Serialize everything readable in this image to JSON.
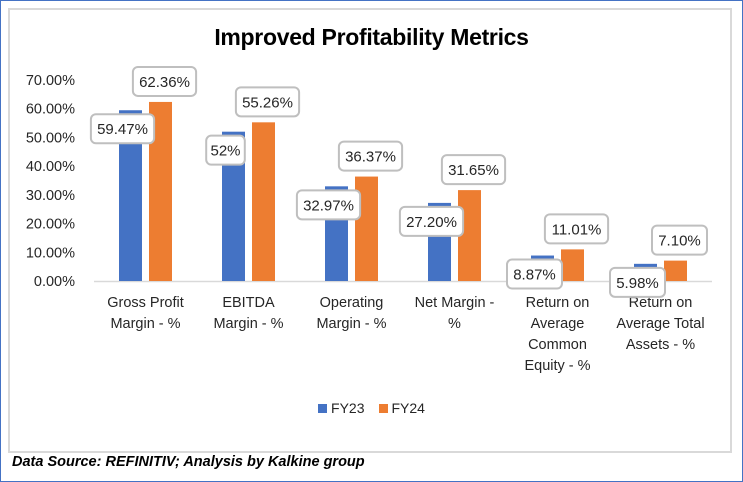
{
  "chart_data": {
    "type": "bar",
    "title": "Improved Profitability Metrics",
    "xlabel": "",
    "ylabel": "",
    "ylim": [
      0,
      70
    ],
    "yticks": [
      "0.00%",
      "10.00%",
      "20.00%",
      "30.00%",
      "40.00%",
      "50.00%",
      "60.00%",
      "70.00%"
    ],
    "ytick_values": [
      0,
      10,
      20,
      30,
      40,
      50,
      60,
      70
    ],
    "grid": false,
    "legend_position": "bottom",
    "categories": [
      [
        "Gross Profit",
        "Margin - %"
      ],
      [
        "EBITDA",
        "Margin - %"
      ],
      [
        "Operating",
        "Margin - %"
      ],
      [
        "Net Margin -",
        "%"
      ],
      [
        "Return on",
        "Average",
        "Common",
        "Equity - %"
      ],
      [
        "Return on",
        "Average Total",
        "Assets - %"
      ]
    ],
    "series": [
      {
        "name": "FY23",
        "color": "#4472C4",
        "values": [
          59.47,
          52,
          32.97,
          27.2,
          8.87,
          5.98
        ],
        "labels": [
          "59.47%",
          "52%",
          "32.97%",
          "27.20%",
          "8.87%",
          "5.98%"
        ]
      },
      {
        "name": "FY24",
        "color": "#ED7D31",
        "values": [
          62.36,
          55.26,
          36.37,
          31.65,
          11.01,
          7.1
        ],
        "labels": [
          "62.36%",
          "55.26%",
          "36.37%",
          "31.65%",
          "11.01%",
          "7.10%"
        ]
      }
    ]
  },
  "legend": {
    "items": [
      {
        "label": "FY23",
        "color": "#4472C4"
      },
      {
        "label": "FY24",
        "color": "#ED7D31"
      }
    ]
  },
  "footer": {
    "source": "Data Source: REFINITIV; Analysis by Kalkine group"
  }
}
